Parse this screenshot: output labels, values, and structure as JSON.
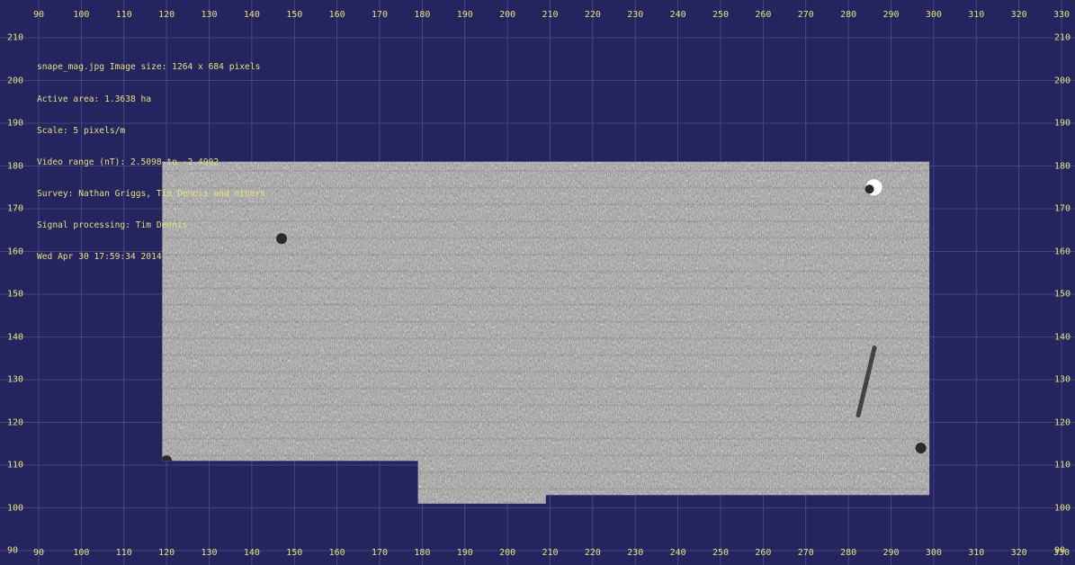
{
  "plot": {
    "background": "#24255e",
    "tick_color": "#e2e27a",
    "grid_color": "#5a5c9a",
    "x_axis": {
      "min": 90,
      "max": 330,
      "step": 10
    },
    "y_axis": {
      "min": 90,
      "max": 210,
      "step": 10
    },
    "x_ticks": [
      "90",
      "100",
      "110",
      "120",
      "130",
      "140",
      "150",
      "160",
      "170",
      "180",
      "190",
      "200",
      "210",
      "220",
      "230",
      "240",
      "250",
      "260",
      "270",
      "280",
      "290",
      "300",
      "310",
      "320",
      "330"
    ],
    "y_ticks": [
      "210",
      "200",
      "190",
      "180",
      "170",
      "160",
      "150",
      "140",
      "130",
      "120",
      "110",
      "100",
      "90"
    ]
  },
  "info": {
    "lines": [
      "snape_mag.jpg Image size: 1264 x 684 pixels",
      "Active area: 1.3638 ha",
      "Scale: 5 pixels/m",
      "Video range (nT): 2.5098 to -2.4902",
      "Survey: Nathan Griggs, Tim Dennis and others",
      "Signal processing: Tim Dennis",
      "Wed Apr 30 17:59:34 2014"
    ]
  },
  "survey": {
    "description_colors": {
      "light": "#d8d8d8",
      "mid": "#9c9c9c",
      "dark": "#2a2a2a"
    },
    "blocks_m": [
      {
        "x0": 119,
        "x1": 179,
        "y0": 111,
        "y1": 181
      },
      {
        "x0": 179,
        "x1": 209,
        "y0": 101,
        "y1": 181
      },
      {
        "x0": 209,
        "x1": 299,
        "y0": 103,
        "y1": 181
      }
    ],
    "anomalies_m": [
      {
        "x": 286,
        "y": 175,
        "type": "dipole"
      },
      {
        "x": 147,
        "y": 163,
        "type": "dark"
      },
      {
        "x": 120,
        "y": 111,
        "type": "dark"
      },
      {
        "x": 284,
        "y": 128,
        "type": "linear"
      },
      {
        "x": 297,
        "y": 114,
        "type": "dark"
      }
    ]
  }
}
